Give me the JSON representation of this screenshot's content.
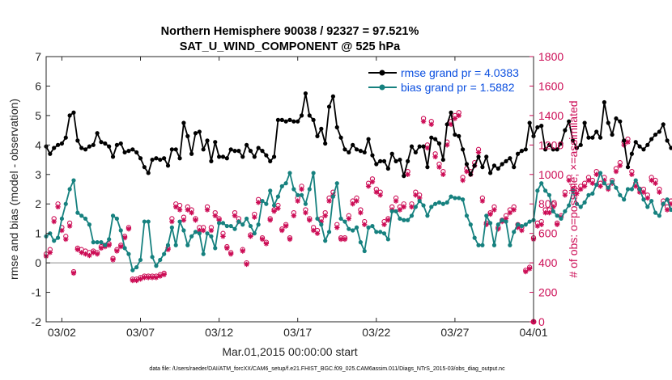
{
  "chart_data": {
    "type": "line",
    "title": [
      "Northern Hemisphere 90038 / 92327 = 97.521%",
      "SAT_U_WIND_COMPONENT @ 525 hPa"
    ],
    "xlabel": "Mar.01,2015 00:00:00 start",
    "ylabel": "rmse and bias (model - observation)",
    "ylabel_right": "# of obs: o=possible; ×=assimilated",
    "footnote": "data file: /Users/raeder/DAI/ATM_forcXX/CAM6_setup/f.e21.FHIST_BGC.f09_025.CAM6assim.011/Diags_NTrS_2015-03/obs_diag_output.nc",
    "xlim": [
      "2015-03-01T00:00",
      "2015-04-01T00:00"
    ],
    "ylim": [
      -2,
      7
    ],
    "ylim_right": [
      0,
      1800
    ],
    "x_ticks": [
      "03/02",
      "03/07",
      "03/12",
      "03/17",
      "03/22",
      "03/27",
      "04/01"
    ],
    "y_ticks": [
      "-2",
      "-1",
      "0",
      "1",
      "2",
      "3",
      "4",
      "5",
      "6",
      "7"
    ],
    "y_ticks_right": [
      "0",
      "200",
      "400",
      "600",
      "800",
      "1000",
      "1200",
      "1400",
      "1600",
      "1800"
    ],
    "grid": false,
    "zero_line": 0,
    "legend_position": "top-right",
    "colors": {
      "rmse": "#000000",
      "bias": "#16817f",
      "obs": "#cc0c55",
      "legend_text": "#0b4fe0"
    },
    "x_start": "2015-03-01T00:00",
    "x_step_hours": 6,
    "series": [
      {
        "name": "rmse grand pr = 4.0383",
        "axis": "left",
        "values": [
          3.95,
          3.7,
          3.9,
          4.0,
          4.05,
          4.25,
          5.0,
          5.1,
          4.15,
          3.9,
          3.85,
          3.95,
          4.0,
          4.4,
          4.1,
          4.05,
          3.95,
          3.6,
          4.0,
          4.05,
          3.75,
          3.8,
          3.85,
          3.75,
          3.55,
          3.25,
          3.05,
          3.5,
          3.55,
          3.5,
          3.55,
          3.3,
          3.85,
          3.85,
          3.55,
          4.75,
          4.3,
          3.7,
          4.4,
          4.45,
          3.85,
          4.15,
          3.45,
          4.1,
          3.6,
          3.6,
          3.55,
          3.85,
          3.8,
          3.8,
          3.6,
          4.0,
          3.8,
          3.6,
          3.9,
          3.8,
          3.65,
          3.45,
          3.6,
          4.85,
          4.85,
          4.8,
          4.85,
          4.8,
          4.8,
          5.0,
          5.75,
          5.0,
          4.85,
          4.3,
          4.55,
          4.05,
          5.3,
          5.65,
          4.6,
          4.25,
          3.85,
          3.75,
          4.0,
          3.85,
          3.8,
          3.75,
          4.2,
          3.65,
          3.35,
          3.45,
          3.45,
          3.2,
          3.7,
          3.45,
          3.5,
          2.95,
          3.45,
          3.95,
          3.75,
          3.95,
          3.95,
          3.25,
          4.25,
          4.2,
          4.05,
          3.5,
          4.7,
          5.1,
          4.35,
          4.3,
          3.85,
          3.35,
          3.0,
          3.3,
          3.6,
          3.25,
          3.6,
          3.05,
          3.3,
          3.2,
          3.35,
          3.45,
          3.55,
          3.25,
          3.7,
          3.8,
          3.85,
          4.75,
          4.3,
          4.6,
          4.65,
          3.85,
          4.0,
          3.85,
          3.85,
          4.05,
          4.5,
          4.8,
          4.15,
          3.9,
          4.0,
          4.75,
          4.25,
          4.25,
          4.45,
          4.25,
          5.45,
          4.75,
          4.35,
          4.9,
          4.8,
          4.15,
          3.25,
          3.7,
          4.1,
          3.95,
          3.85,
          4.0,
          4.2,
          4.35,
          4.45,
          4.7,
          4.15,
          3.9,
          3.85,
          3.8,
          3.65,
          4.0,
          3.85,
          4.7,
          4.6,
          4.0,
          4.05,
          3.55,
          4.35,
          4.25,
          3.75,
          3.5,
          3.5,
          3.9,
          4.05,
          4.15,
          3.9,
          3.85,
          3.8,
          3.45,
          4.05,
          4.1,
          4.0,
          4.25,
          3.95,
          3.9
        ]
      },
      {
        "name": "bias grand pr = 1.5882",
        "axis": "left",
        "values": [
          0.9,
          1.0,
          0.75,
          0.85,
          1.5,
          2.0,
          2.5,
          2.8,
          1.7,
          1.6,
          1.5,
          1.3,
          0.7,
          0.7,
          0.7,
          0.6,
          0.8,
          1.6,
          1.5,
          1.1,
          0.5,
          0.3,
          -0.25,
          -0.15,
          0.1,
          1.4,
          1.4,
          0.2,
          -0.1,
          0.1,
          0.3,
          0.6,
          1.2,
          0.6,
          1.4,
          1.1,
          0.6,
          0.9,
          1.05,
          1.0,
          0.3,
          1.0,
          0.9,
          0.5,
          1.35,
          1.35,
          1.25,
          1.25,
          1.15,
          1.4,
          1.3,
          1.5,
          1.25,
          1.0,
          1.3,
          2.1,
          2.0,
          2.45,
          1.95,
          2.25,
          2.6,
          2.7,
          3.05,
          2.5,
          2.3,
          2.3,
          2.0,
          2.5,
          3.05,
          1.5,
          1.3,
          0.75,
          1.05,
          2.25,
          2.7,
          1.5,
          1.4,
          1.15,
          1.1,
          1.2,
          0.7,
          0.4,
          1.2,
          1.25,
          1.05,
          1.05,
          1.0,
          0.8,
          1.75,
          1.75,
          1.5,
          1.45,
          1.45,
          1.6,
          1.9,
          2.1,
          1.95,
          1.6,
          1.9,
          2.0,
          2.05,
          2.0,
          2.05,
          2.25,
          2.2,
          2.2,
          2.15,
          1.6,
          1.3,
          0.85,
          0.6,
          0.6,
          1.6,
          1.35,
          0.6,
          1.3,
          1.45,
          1.4,
          0.6,
          1.05,
          1.3,
          1.25,
          1.3,
          1.4,
          1.45,
          2.45,
          2.7,
          2.45,
          2.3,
          1.75,
          1.6,
          1.5,
          1.75,
          1.95,
          2.45,
          2.0,
          1.9,
          2.05,
          2.3,
          2.35,
          2.65,
          3.05,
          2.7,
          2.55,
          2.75,
          2.55,
          2.3,
          2.15,
          2.5,
          2.5,
          2.8,
          2.5,
          2.15,
          1.9,
          2.1,
          1.7,
          1.6,
          2.0,
          2.15,
          1.8,
          2.0,
          1.85,
          1.7,
          1.7,
          2.25,
          2.0,
          1.75,
          1.7,
          2.3,
          2.55,
          1.95,
          1.55,
          2.15,
          2.0,
          1.9,
          2.0,
          1.75,
          2.0,
          2.05,
          1.75,
          1.6,
          1.8,
          2.0,
          2.15
        ]
      },
      {
        "name": "# of obs assimilated",
        "axis": "right",
        "marker": "*",
        "values": [
          445,
          470,
          680,
          780,
          620,
          560,
          650,
          330,
          490,
          470,
          460,
          450,
          470,
          460,
          500,
          510,
          520,
          420,
          480,
          510,
          570,
          630,
          280,
          280,
          290,
          300,
          300,
          300,
          300,
          310,
          320,
          490,
          680,
          780,
          760,
          690,
          760,
          740,
          690,
          620,
          620,
          760,
          620,
          720,
          690,
          580,
          500,
          460,
          720,
          680,
          480,
          390,
          580,
          710,
          810,
          560,
          530,
          690,
          750,
          770,
          620,
          650,
          560,
          720,
          820,
          900,
          740,
          690,
          620,
          600,
          680,
          720,
          820,
          860,
          640,
          560,
          560,
          700,
          800,
          820,
          740,
          660,
          920,
          950,
          880,
          860,
          660,
          690,
          760,
          820,
          760,
          780,
          1000,
          780,
          860,
          840,
          1360,
          1180,
          1340,
          1120,
          1050,
          1000,
          1200,
          1340,
          1380,
          1400,
          960,
          1020,
          1000,
          1060,
          1150,
          820,
          660,
          730,
          760,
          630,
          680,
          700,
          740,
          760,
          640,
          620,
          340,
          360,
          560,
          650,
          660,
          740,
          740,
          780,
          660,
          710,
          860,
          960,
          900,
          870,
          900,
          920,
          960,
          940,
          1000,
          920,
          960,
          900,
          940,
          1020,
          1060,
          1200,
          1220,
          1000,
          920,
          880,
          880,
          840,
          960,
          940,
          880,
          800,
          760,
          800,
          900,
          940,
          880,
          860,
          920,
          760,
          780,
          900,
          920,
          960,
          920,
          900,
          860,
          840,
          860,
          820,
          900,
          960,
          900,
          840,
          800,
          840,
          900,
          980,
          1000,
          900,
          860
        ]
      },
      {
        "name": "# of obs possible",
        "axis": "right",
        "marker": "o",
        "values": [
          460,
          490,
          700,
          800,
          640,
          580,
          670,
          340,
          500,
          490,
          480,
          470,
          480,
          470,
          510,
          520,
          530,
          430,
          490,
          520,
          580,
          640,
          290,
          290,
          300,
          310,
          310,
          310,
          310,
          320,
          330,
          500,
          700,
          800,
          790,
          710,
          780,
          760,
          700,
          640,
          640,
          780,
          640,
          740,
          700,
          600,
          510,
          470,
          740,
          700,
          490,
          400,
          590,
          730,
          830,
          570,
          540,
          700,
          760,
          790,
          630,
          660,
          570,
          740,
          840,
          920,
          760,
          700,
          640,
          620,
          700,
          740,
          840,
          880,
          660,
          570,
          570,
          720,
          820,
          840,
          760,
          680,
          940,
          970,
          900,
          880,
          680,
          700,
          780,
          840,
          780,
          800,
          1020,
          800,
          880,
          860,
          1380,
          1200,
          1360,
          1140,
          1070,
          1020,
          1220,
          1360,
          1400,
          1420,
          980,
          1040,
          1020,
          1080,
          1170,
          840,
          670,
          740,
          780,
          640,
          690,
          720,
          760,
          780,
          660,
          640,
          350,
          370,
          570,
          670,
          680,
          760,
          760,
          800,
          670,
          720,
          880,
          980,
          920,
          890,
          920,
          940,
          980,
          960,
          1020,
          940,
          980,
          920,
          960,
          1040,
          1080,
          1220,
          1240,
          1020,
          940,
          900,
          900,
          860,
          980,
          960,
          900,
          820,
          780,
          820,
          920,
          960,
          900,
          880,
          940,
          780,
          800,
          920,
          940,
          980,
          940,
          920,
          880,
          860,
          880,
          840,
          920,
          980,
          920,
          860,
          820,
          860,
          920,
          1000,
          1020,
          920,
          880
        ]
      }
    ]
  }
}
